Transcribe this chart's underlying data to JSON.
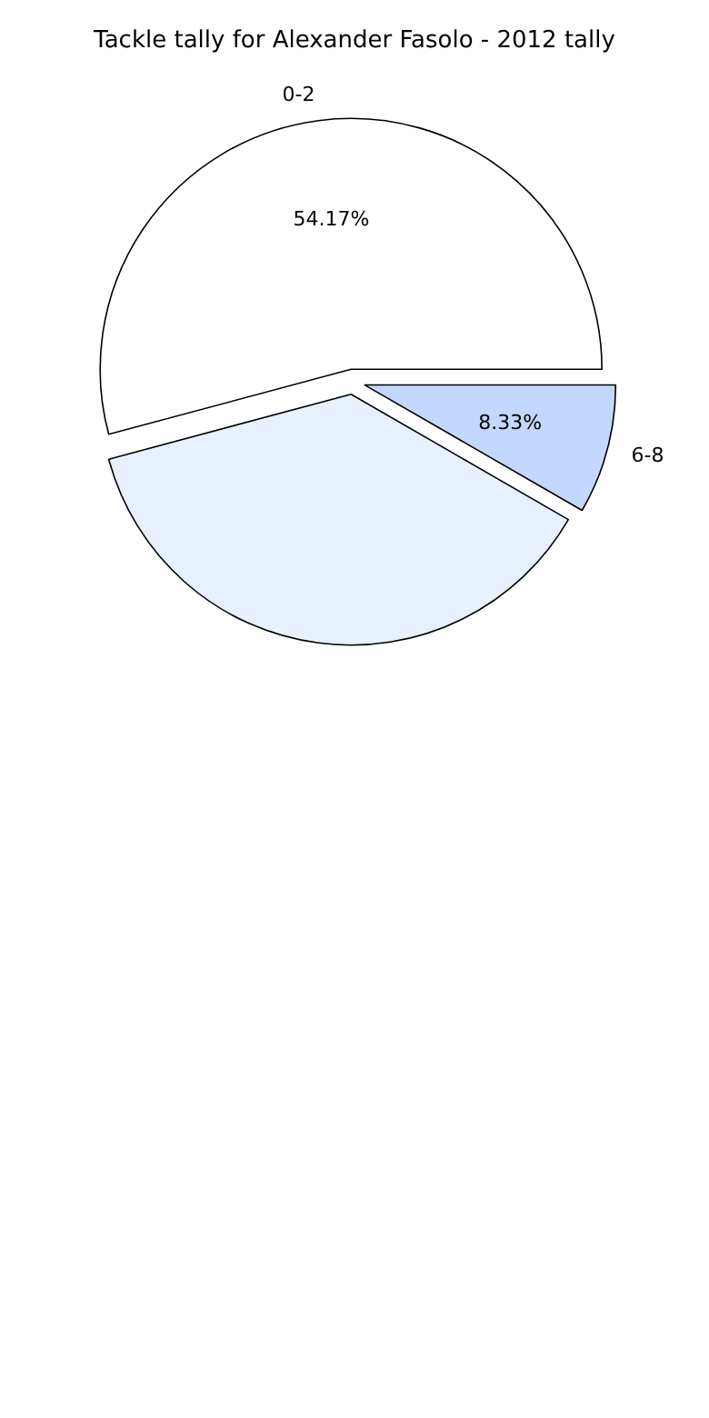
{
  "chart_data": {
    "type": "pie",
    "title": "Tackle tally for Alexander Fasolo - 2012 tally",
    "categories": [
      "0-2",
      null,
      "6-8"
    ],
    "values": [
      54.17,
      37.5,
      8.33
    ],
    "colors": [
      "#ffffff",
      "#e8f0ff",
      "#c4d8ff"
    ],
    "value_labels": [
      "54.17%",
      null,
      "8.33%"
    ]
  }
}
